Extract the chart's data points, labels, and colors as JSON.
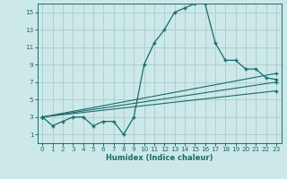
{
  "title": "",
  "xlabel": "Humidex (Indice chaleur)",
  "ylabel": "",
  "bg_color": "#cce8e8",
  "grid_color": "#aacccc",
  "line_color": "#1a6b6b",
  "xlim": [
    -0.5,
    23.5
  ],
  "ylim": [
    0,
    16
  ],
  "xticks": [
    0,
    1,
    2,
    3,
    4,
    5,
    6,
    7,
    8,
    9,
    10,
    11,
    12,
    13,
    14,
    15,
    16,
    17,
    18,
    19,
    20,
    21,
    22,
    23
  ],
  "yticks": [
    1,
    3,
    5,
    7,
    9,
    11,
    13,
    15
  ],
  "main_series": {
    "x": [
      0,
      1,
      2,
      3,
      4,
      5,
      6,
      7,
      8,
      9,
      10,
      11,
      12,
      13,
      14,
      15,
      16,
      17,
      18,
      19,
      20,
      21,
      22,
      23
    ],
    "y": [
      3,
      2,
      2.5,
      3,
      3,
      2,
      2.5,
      2.5,
      1,
      3,
      9,
      11.5,
      13,
      15,
      15.5,
      16,
      16,
      11.5,
      9.5,
      9.5,
      8.5,
      8.5,
      7.5,
      7.3
    ]
  },
  "line1": {
    "x": [
      0,
      23
    ],
    "y": [
      3,
      8.0
    ]
  },
  "line2": {
    "x": [
      0,
      23
    ],
    "y": [
      3,
      7.0
    ]
  },
  "line3": {
    "x": [
      0,
      23
    ],
    "y": [
      3,
      6.0
    ]
  }
}
